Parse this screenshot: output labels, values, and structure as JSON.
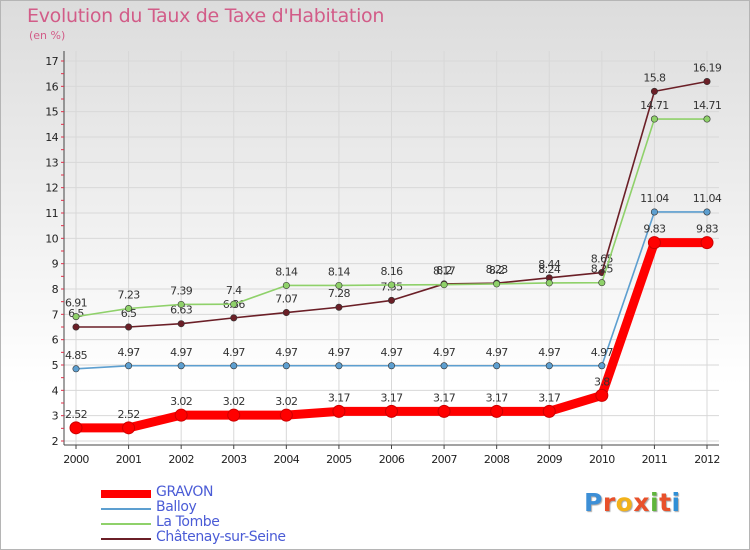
{
  "title": "Evolution du Taux de Taxe d'Habitation",
  "unit_label": "(en %)",
  "brand": "Proxiti",
  "brand_colors": [
    "#3d8fd6",
    "#e8502a",
    "#f2b21a",
    "#e8502a",
    "#5fb53c",
    "#e8502a",
    "#2f8fd6"
  ],
  "chart_data": {
    "type": "line",
    "x": [
      "2000",
      "2001",
      "2002",
      "2003",
      "2004",
      "2005",
      "2006",
      "2007",
      "2008",
      "2009",
      "2010",
      "2011",
      "2012"
    ],
    "ylim": [
      2,
      17
    ],
    "yticks": [
      "2",
      "3",
      "4",
      "5",
      "6",
      "7",
      "8",
      "9",
      "10",
      "11",
      "12",
      "13",
      "14",
      "15",
      "16",
      "17"
    ],
    "grid": true,
    "legend_position": "bottom-left",
    "series": [
      {
        "name": "Châtenay-sur-Seine",
        "color": "#6b1f27",
        "values": [
          6.5,
          6.5,
          6.63,
          6.86,
          7.07,
          7.28,
          7.55,
          8.2,
          8.23,
          8.44,
          8.65,
          15.8,
          16.19
        ],
        "labels": [
          "6.5",
          "6.5",
          "6.63",
          "6.86",
          "7.07",
          "7.28",
          "7.55",
          "8.2",
          "8.23",
          "8.44",
          "8.65",
          "15.8",
          "16.19"
        ]
      },
      {
        "name": "La Tombe",
        "color": "#8fd16a",
        "values": [
          6.91,
          7.23,
          7.39,
          7.4,
          8.14,
          8.14,
          8.16,
          8.17,
          8.2,
          8.24,
          8.25,
          14.71,
          14.71
        ],
        "labels": [
          "6.91",
          "7.23",
          "7.39",
          "7.4",
          "8.14",
          "8.14",
          "8.16",
          "8.17",
          "8.2",
          "8.24",
          "8.25",
          "14.71",
          "14.71"
        ]
      },
      {
        "name": "Balloy",
        "color": "#5d9fd0",
        "values": [
          4.85,
          4.97,
          4.97,
          4.97,
          4.97,
          4.97,
          4.97,
          4.97,
          4.97,
          4.97,
          4.97,
          11.04,
          11.04
        ],
        "labels": [
          "4.85",
          "4.97",
          "4.97",
          "4.97",
          "4.97",
          "4.97",
          "4.97",
          "4.97",
          "4.97",
          "4.97",
          "4.97",
          "11.04",
          "11.04"
        ]
      },
      {
        "name": "GRAVON",
        "color": "#ff0000",
        "values": [
          2.52,
          2.52,
          3.02,
          3.02,
          3.02,
          3.17,
          3.17,
          3.17,
          3.17,
          3.17,
          3.8,
          9.83,
          9.83
        ],
        "labels": [
          "2.52",
          "2.52",
          "3.02",
          "3.02",
          "3.02",
          "3.17",
          "3.17",
          "3.17",
          "3.17",
          "3.17",
          "3.8",
          "9.83",
          "9.83"
        ]
      }
    ]
  },
  "legend": [
    {
      "name": "GRAVON",
      "color": "#ff0000"
    },
    {
      "name": "Balloy",
      "color": "#5d9fd0"
    },
    {
      "name": "La Tombe",
      "color": "#8fd16a"
    },
    {
      "name": "Châtenay-sur-Seine",
      "color": "#6b1f27"
    }
  ]
}
